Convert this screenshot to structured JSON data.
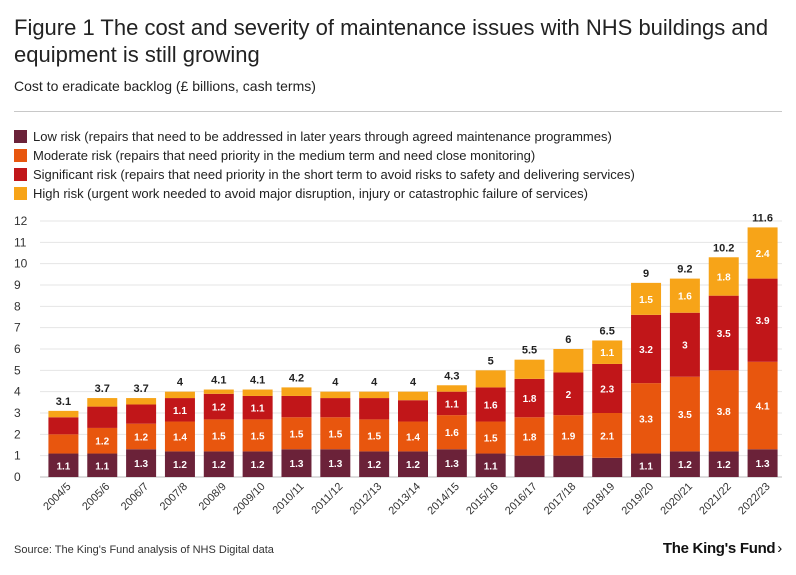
{
  "title": "Figure 1 The cost and severity of maintenance issues with NHS buildings and equipment is still growing",
  "subtitle": "Cost to eradicate backlog (£ billions, cash terms)",
  "source": "Source: The King's Fund analysis of NHS Digital data",
  "logo": "The King's Fund",
  "logo_arrow": "›",
  "colors": {
    "low": "#6b2239",
    "moderate": "#e8560e",
    "significant": "#c11619",
    "high": "#f7a418"
  },
  "legend": [
    {
      "key": "low",
      "label": "Low risk (repairs that need to be addressed in later years through agreed maintenance programmes)"
    },
    {
      "key": "moderate",
      "label": "Moderate risk (repairs that need priority in the medium term and need close monitoring)"
    },
    {
      "key": "significant",
      "label": "Significant risk (repairs that need priority in the short term to avoid risks to safety and delivering services)"
    },
    {
      "key": "high",
      "label": "High risk (urgent work needed to avoid major disruption, injury or catastrophic failure of services)"
    }
  ],
  "chart_data": {
    "type": "bar",
    "stacked": true,
    "title": "Cost to eradicate backlog (£ billions, cash terms)",
    "ylim": [
      0,
      12
    ],
    "yticks": [
      0,
      1,
      2,
      3,
      4,
      5,
      6,
      7,
      8,
      9,
      10,
      11,
      12
    ],
    "categories": [
      "2004/5",
      "2005/6",
      "2006/7",
      "2007/8",
      "2008/9",
      "2009/10",
      "2010/11",
      "2011/12",
      "2012/13",
      "2013/14",
      "2014/15",
      "2015/16",
      "2016/17",
      "2017/18",
      "2018/19",
      "2019/20",
      "2020/21",
      "2021/22",
      "2022/23"
    ],
    "series": [
      {
        "name": "Low risk",
        "key": "low",
        "values": [
          1.1,
          1.1,
          1.3,
          1.2,
          1.2,
          1.2,
          1.3,
          1.3,
          1.2,
          1.2,
          1.3,
          1.1,
          1.0,
          1.0,
          0.9,
          1.1,
          1.2,
          1.2,
          1.3
        ],
        "labels": [
          "1.1",
          "1.1",
          "1.3",
          "1.2",
          "1.2",
          "1.2",
          "1.3",
          "1.3",
          "1.2",
          "1.2",
          "1.3",
          "1.1",
          "",
          "",
          "",
          "1.1",
          "1.2",
          "1.2",
          "1.3"
        ]
      },
      {
        "name": "Moderate risk",
        "key": "moderate",
        "values": [
          0.9,
          1.2,
          1.2,
          1.4,
          1.5,
          1.5,
          1.5,
          1.5,
          1.5,
          1.4,
          1.6,
          1.5,
          1.8,
          1.9,
          2.1,
          3.3,
          3.5,
          3.8,
          4.1
        ],
        "labels": [
          "",
          "1.2",
          "1.2",
          "1.4",
          "1.5",
          "1.5",
          "1.5",
          "1.5",
          "1.5",
          "1.4",
          "1.6",
          "1.5",
          "1.8",
          "1.9",
          "2.1",
          "3.3",
          "3.5",
          "3.8",
          "4.1"
        ]
      },
      {
        "name": "Significant risk",
        "key": "significant",
        "values": [
          0.8,
          1.0,
          0.9,
          1.1,
          1.2,
          1.1,
          1.0,
          0.9,
          1.0,
          1.0,
          1.1,
          1.6,
          1.8,
          2.0,
          2.3,
          3.2,
          3.0,
          3.5,
          3.9
        ],
        "labels": [
          "",
          "",
          "",
          "1.1",
          "1.2",
          "1.1",
          "",
          "",
          "",
          "",
          "1.1",
          "1.6",
          "1.8",
          "2",
          "2.3",
          "3.2",
          "3",
          "3.5",
          "3.9"
        ]
      },
      {
        "name": "High risk",
        "key": "high",
        "values": [
          0.3,
          0.4,
          0.3,
          0.3,
          0.2,
          0.3,
          0.4,
          0.3,
          0.3,
          0.4,
          0.3,
          0.8,
          0.9,
          1.1,
          1.1,
          1.5,
          1.6,
          1.8,
          2.4
        ],
        "labels": [
          "",
          "",
          "",
          "",
          "",
          "",
          "",
          "",
          "",
          "",
          "",
          "",
          "",
          "",
          "1.1",
          "1.5",
          "1.6",
          "1.8",
          "2.4"
        ]
      }
    ],
    "totals": [
      "3.1",
      "3.7",
      "3.7",
      "4",
      "4.1",
      "4.1",
      "4.2",
      "4",
      "4",
      "4",
      "4.3",
      "5",
      "5.5",
      "6",
      "6.5",
      "9",
      "9.2",
      "10.2",
      "11.6"
    ],
    "grid": true
  }
}
